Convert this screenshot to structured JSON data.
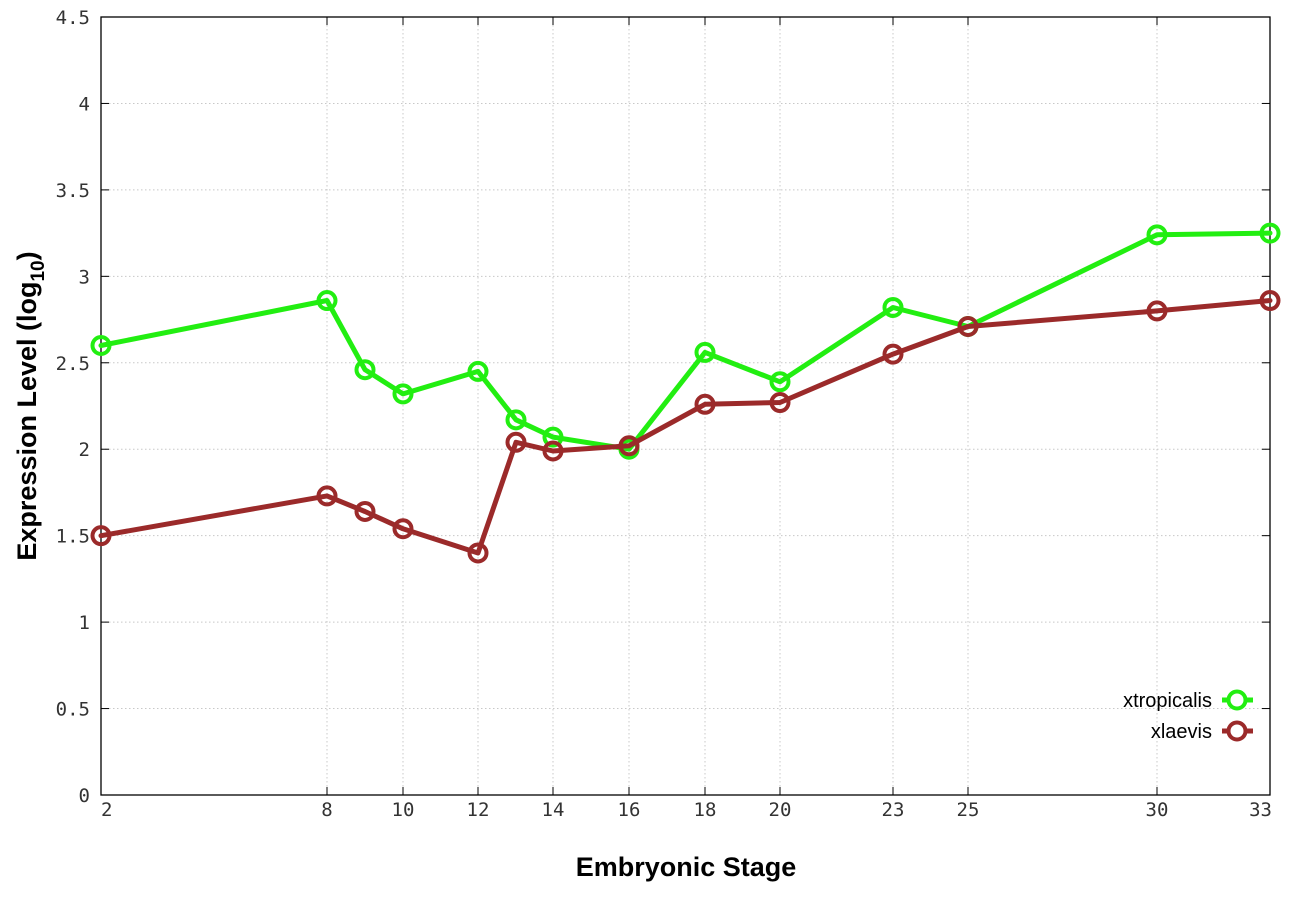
{
  "chart_data": {
    "type": "line",
    "title": "",
    "xlabel": "Embryonic Stage",
    "ylabel": "Expression Level (log",
    "ylabel_subscript": "10",
    "ylabel_suffix": ")",
    "x_categories": [
      "2",
      "8",
      "9",
      "10",
      "12",
      "13",
      "14",
      "16",
      "18",
      "20",
      "23",
      "25",
      "30",
      "33"
    ],
    "x_tick_labels": [
      "2",
      "8",
      "10",
      "12",
      "14",
      "16",
      "18",
      "20",
      "23",
      "25",
      "30",
      "33"
    ],
    "y_ticks": [
      "0",
      "0.5",
      "1",
      "1.5",
      "2",
      "2.5",
      "3",
      "3.5",
      "4",
      "4.5"
    ],
    "ylim": [
      0,
      4.5
    ],
    "grid": true,
    "legend_position": "bottom-right",
    "series": [
      {
        "name": "xtropicalis",
        "color": "#22ee11",
        "x": [
          2,
          8,
          9,
          10,
          12,
          13,
          14,
          16,
          18,
          20,
          23,
          25,
          30,
          33
        ],
        "values": [
          2.6,
          2.86,
          2.46,
          2.32,
          2.45,
          2.17,
          2.07,
          2.0,
          2.56,
          2.39,
          2.82,
          2.71,
          3.24,
          3.25
        ]
      },
      {
        "name": "xlaevis",
        "color": "#9b2a2a",
        "x": [
          2,
          8,
          9,
          10,
          12,
          13,
          14,
          16,
          18,
          20,
          23,
          25,
          30,
          33
        ],
        "values": [
          1.5,
          1.73,
          1.64,
          1.54,
          1.4,
          2.04,
          1.99,
          2.02,
          2.26,
          2.27,
          2.55,
          2.71,
          2.8,
          2.86
        ]
      }
    ]
  }
}
